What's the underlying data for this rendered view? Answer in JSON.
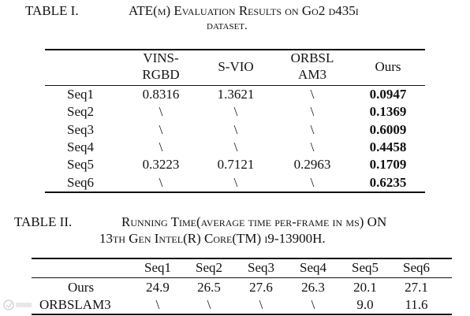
{
  "table1": {
    "label": "TABLE I.",
    "caption_line1": "ATE(m) Evaluation Results on Go2 d435i",
    "caption_line2": "dataset.",
    "columns": [
      "VINS-RGBD",
      "S-VIO",
      "ORBSLAM3",
      "Ours"
    ],
    "col_head_lines": [
      [
        "VINS-",
        "RGBD"
      ],
      [
        "S-VIO"
      ],
      [
        "ORBSL",
        "AM3"
      ],
      [
        "Ours"
      ]
    ],
    "rows": [
      {
        "label": "Seq1",
        "values": [
          "0.8316",
          "1.3621",
          "\\",
          "0.0947"
        ]
      },
      {
        "label": "Seq2",
        "values": [
          "\\",
          "\\",
          "\\",
          "0.1369"
        ]
      },
      {
        "label": "Seq3",
        "values": [
          "\\",
          "\\",
          "\\",
          "0.6009"
        ]
      },
      {
        "label": "Seq4",
        "values": [
          "\\",
          "\\",
          "\\",
          "0.4458"
        ]
      },
      {
        "label": "Seq5",
        "values": [
          "0.3223",
          "0.7121",
          "0.2963",
          "0.1709"
        ]
      },
      {
        "label": "Seq6",
        "values": [
          "\\",
          "\\",
          "\\",
          "0.6235"
        ]
      }
    ]
  },
  "table2": {
    "label": "TABLE II.",
    "caption_line1": "Running Time(average time per-frame in ms) ON",
    "caption_line2": "13th Gen Intel(R) Core(TM) i9-13900H.",
    "columns": [
      "Seq1",
      "Seq2",
      "Seq3",
      "Seq4",
      "Seq5",
      "Seq6"
    ],
    "rows": [
      {
        "label": "Ours",
        "values": [
          "24.9",
          "26.5",
          "27.6",
          "26.3",
          "20.1",
          "27.1"
        ]
      },
      {
        "label": "ORBSLAM3",
        "values": [
          "\\",
          "\\",
          "\\",
          "\\",
          "9.0",
          "11.6"
        ]
      }
    ]
  }
}
